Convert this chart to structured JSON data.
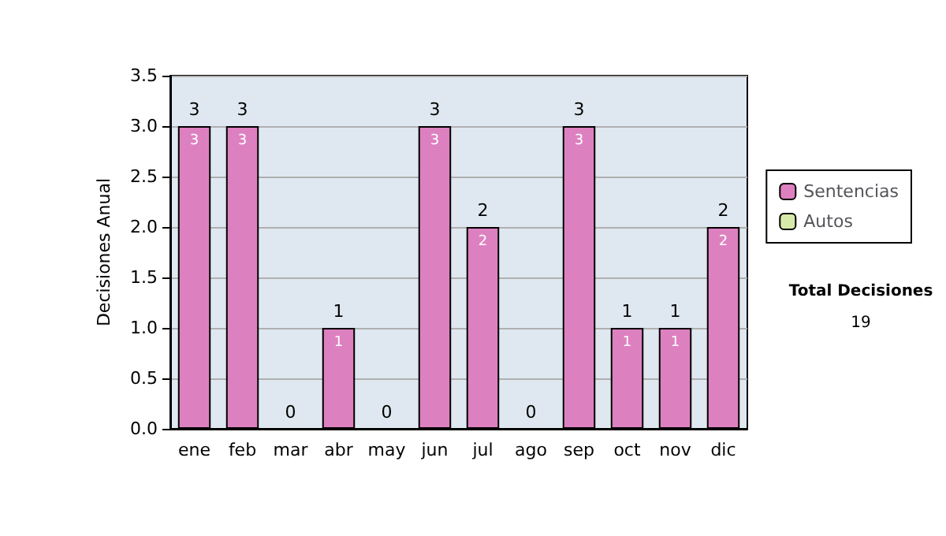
{
  "chart_data": {
    "type": "bar",
    "ylabel": "Decisiones Anual",
    "categories": [
      "ene",
      "feb",
      "mar",
      "abr",
      "may",
      "jun",
      "jul",
      "ago",
      "sep",
      "oct",
      "nov",
      "dic"
    ],
    "series": [
      {
        "name": "Sentencias",
        "color": "#dd80c0",
        "values": [
          3,
          3,
          0,
          1,
          0,
          3,
          2,
          0,
          3,
          1,
          1,
          2
        ],
        "value_labels": [
          "3",
          "3",
          null,
          "1",
          null,
          "3",
          "2",
          null,
          "3",
          "1",
          "1",
          "2"
        ]
      },
      {
        "name": "Autos",
        "color": "#d8eaa8",
        "values": [
          0,
          0,
          0,
          0,
          0,
          0,
          0,
          0,
          0,
          0,
          0,
          0
        ]
      }
    ],
    "stacked": true,
    "totals": [
      "3",
      "3",
      "0",
      "1",
      "0",
      "3",
      "2",
      "0",
      "3",
      "1",
      "1",
      "2"
    ],
    "ylim": [
      0,
      3.5
    ],
    "yticks": [
      {
        "value": 0,
        "label": "0.0"
      },
      {
        "value": 0.5,
        "label": "0.5"
      },
      {
        "value": 1,
        "label": "1.0"
      },
      {
        "value": 1.5,
        "label": "1.5"
      },
      {
        "value": 2,
        "label": "2.0"
      },
      {
        "value": 2.5,
        "label": "2.5"
      },
      {
        "value": 3,
        "label": "3.0"
      },
      {
        "value": 3.5,
        "label": "3.5"
      }
    ],
    "grid": "y",
    "legend": "right",
    "annotations": [
      "Total Decisiones",
      "19"
    ]
  }
}
